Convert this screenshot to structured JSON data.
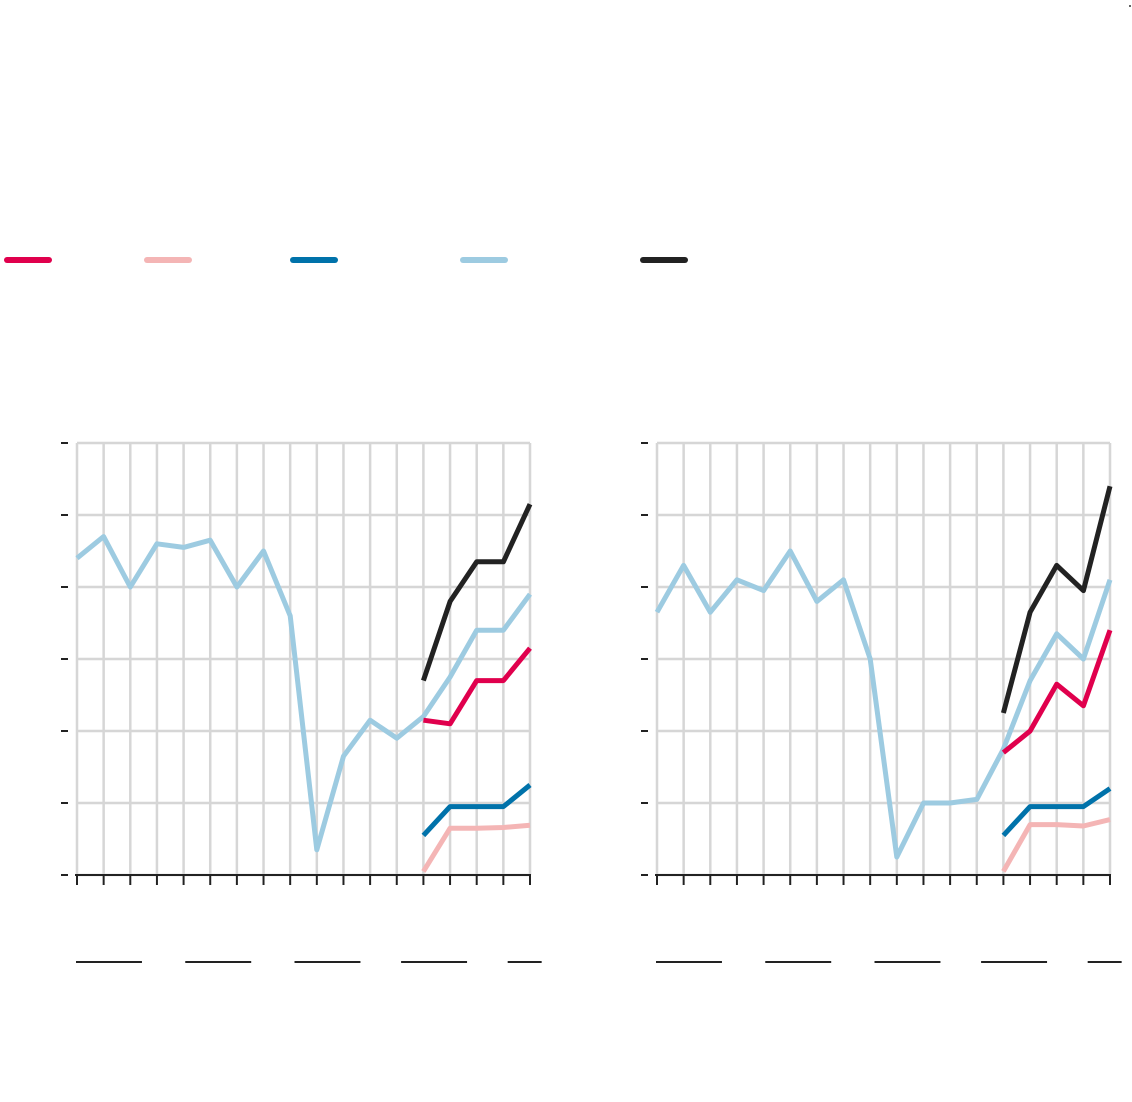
{
  "colors": {
    "series_1": "#e0004d",
    "series_2": "#f4b5b5",
    "series_3": "#0072aa",
    "series_4": "#9dcbe1",
    "series_5": "#222222",
    "grid": "#d6d6d6",
    "axis": "#222222"
  },
  "legend": [
    {
      "id": "series_1",
      "label": ""
    },
    {
      "id": "series_2",
      "label": ""
    },
    {
      "id": "series_3",
      "label": ""
    },
    {
      "id": "series_4",
      "label": ""
    },
    {
      "id": "series_5",
      "label": ""
    }
  ],
  "chart_data": [
    {
      "type": "line",
      "title": "",
      "x": [
        0,
        1,
        2,
        3,
        4,
        5,
        6,
        7,
        8,
        9,
        10,
        11,
        12,
        13,
        14,
        15,
        16,
        17
      ],
      "ylim": [
        0,
        6
      ],
      "y_ticks": [
        0,
        1,
        2,
        3,
        4,
        5,
        6
      ],
      "grid": true,
      "x_groups": 5,
      "series": [
        {
          "id": "series_4",
          "points": [
            [
              0,
              4.4
            ],
            [
              1,
              4.7
            ],
            [
              2,
              4.0
            ],
            [
              3,
              4.6
            ],
            [
              4,
              4.55
            ],
            [
              5,
              4.65
            ],
            [
              6,
              4.0
            ],
            [
              7,
              4.5
            ],
            [
              8,
              3.6
            ],
            [
              9,
              0.35
            ],
            [
              10,
              1.65
            ],
            [
              11,
              2.15
            ],
            [
              12,
              1.9
            ],
            [
              13,
              2.2
            ],
            [
              14,
              2.75
            ],
            [
              15,
              3.4
            ],
            [
              16,
              3.4
            ],
            [
              17,
              3.9
            ]
          ]
        },
        {
          "id": "series_5",
          "points": [
            [
              13,
              2.7
            ],
            [
              14,
              3.8
            ],
            [
              15,
              4.35
            ],
            [
              16,
              4.35
            ],
            [
              17,
              5.15
            ]
          ]
        },
        {
          "id": "series_1",
          "points": [
            [
              13,
              2.15
            ],
            [
              14,
              2.1
            ],
            [
              15,
              2.7
            ],
            [
              16,
              2.7
            ],
            [
              17,
              3.15
            ]
          ]
        },
        {
          "id": "series_3",
          "points": [
            [
              13,
              0.55
            ],
            [
              14,
              0.95
            ],
            [
              15,
              0.95
            ],
            [
              16,
              0.95
            ],
            [
              17,
              1.25
            ]
          ]
        },
        {
          "id": "series_2",
          "points": [
            [
              13,
              0.05
            ],
            [
              14,
              0.65
            ],
            [
              15,
              0.65
            ],
            [
              16,
              0.66
            ],
            [
              17,
              0.69
            ]
          ]
        }
      ]
    },
    {
      "type": "line",
      "title": "",
      "x": [
        0,
        1,
        2,
        3,
        4,
        5,
        6,
        7,
        8,
        9,
        10,
        11,
        12,
        13,
        14,
        15,
        16,
        17
      ],
      "ylim": [
        0,
        6
      ],
      "y_ticks": [
        0,
        1,
        2,
        3,
        4,
        5,
        6
      ],
      "grid": true,
      "x_groups": 5,
      "series": [
        {
          "id": "series_4",
          "points": [
            [
              0,
              3.65
            ],
            [
              1,
              4.3
            ],
            [
              2,
              3.65
            ],
            [
              3,
              4.1
            ],
            [
              4,
              3.95
            ],
            [
              5,
              4.5
            ],
            [
              6,
              3.8
            ],
            [
              7,
              4.1
            ],
            [
              8,
              3.0
            ],
            [
              9,
              0.25
            ],
            [
              10,
              1.0
            ],
            [
              11,
              1.0
            ],
            [
              12,
              1.05
            ],
            [
              13,
              1.75
            ],
            [
              14,
              2.7
            ],
            [
              15,
              3.35
            ],
            [
              16,
              3.0
            ],
            [
              17,
              4.1
            ]
          ]
        },
        {
          "id": "series_5",
          "points": [
            [
              13,
              2.25
            ],
            [
              14,
              3.65
            ],
            [
              15,
              4.3
            ],
            [
              16,
              3.95
            ],
            [
              17,
              5.4
            ]
          ]
        },
        {
          "id": "series_1",
          "points": [
            [
              13,
              1.7
            ],
            [
              14,
              2.0
            ],
            [
              15,
              2.65
            ],
            [
              16,
              2.35
            ],
            [
              17,
              3.4
            ]
          ]
        },
        {
          "id": "series_3",
          "points": [
            [
              13,
              0.55
            ],
            [
              14,
              0.95
            ],
            [
              15,
              0.95
            ],
            [
              16,
              0.95
            ],
            [
              17,
              1.2
            ]
          ]
        },
        {
          "id": "series_2",
          "points": [
            [
              13,
              0.05
            ],
            [
              14,
              0.7
            ],
            [
              15,
              0.7
            ],
            [
              16,
              0.68
            ],
            [
              17,
              0.77
            ]
          ]
        }
      ]
    }
  ]
}
